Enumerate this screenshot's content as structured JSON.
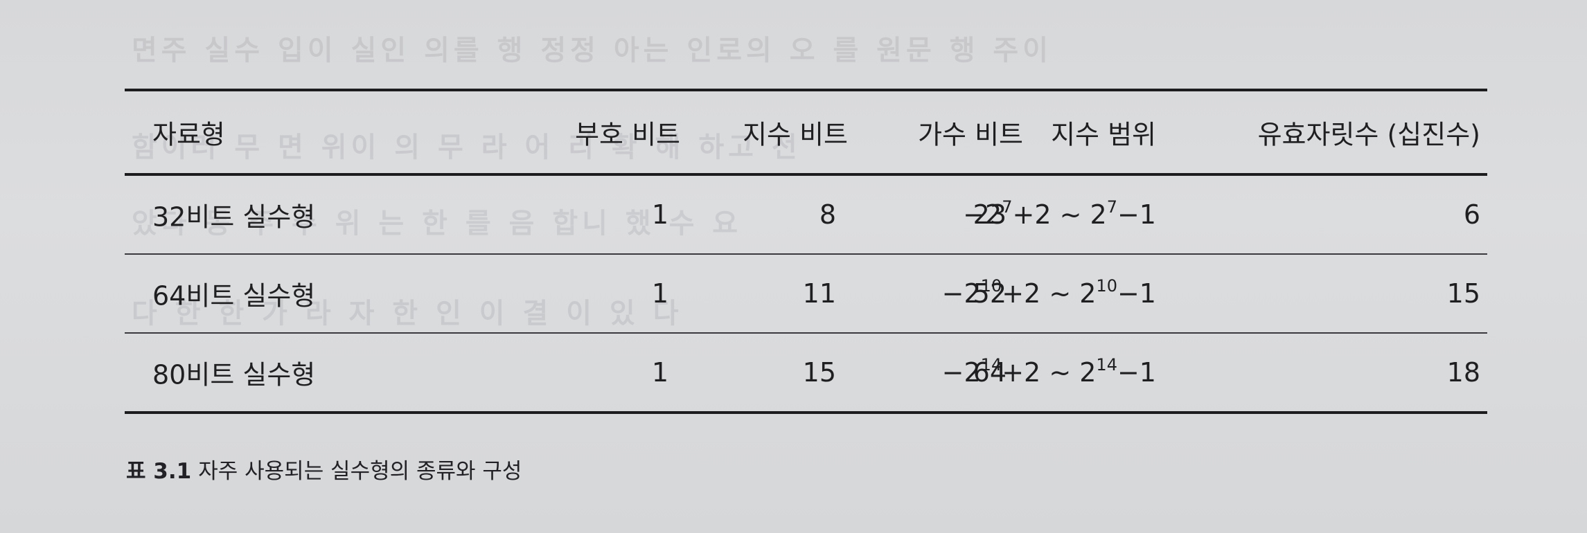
{
  "table": {
    "headers": {
      "type": "자료형",
      "sign_bits": "부호 비트",
      "exponent_bits": "지수 비트",
      "mantissa_bits": "가수 비트",
      "exponent_range": "지수 범위",
      "significant_digits": "유효자릿수 (십진수)"
    },
    "rows": [
      {
        "type": "32비트 실수형",
        "sign_bits": "1",
        "exponent_bits": "8",
        "mantissa_bits": "23",
        "range": {
          "lo_prefix": "−2",
          "lo_exp": "7",
          "mid": "+2 ~ 2",
          "hi_exp": "7",
          "suffix": "−1"
        },
        "significant_digits": "6"
      },
      {
        "type": "64비트 실수형",
        "sign_bits": "1",
        "exponent_bits": "11",
        "mantissa_bits": "52",
        "range": {
          "lo_prefix": "−2",
          "lo_exp": "10",
          "mid": "+2 ~ 2",
          "hi_exp": "10",
          "suffix": "−1"
        },
        "significant_digits": "15"
      },
      {
        "type": "80비트 실수형",
        "sign_bits": "1",
        "exponent_bits": "15",
        "mantissa_bits": "64",
        "range": {
          "lo_prefix": "−2",
          "lo_exp": "14",
          "mid": "+2 ~ 2",
          "hi_exp": "14",
          "suffix": "−1"
        },
        "significant_digits": "18"
      }
    ]
  },
  "caption": {
    "number": "표 3.1",
    "text": "자주 사용되는 실수형의 종류와 구성"
  }
}
